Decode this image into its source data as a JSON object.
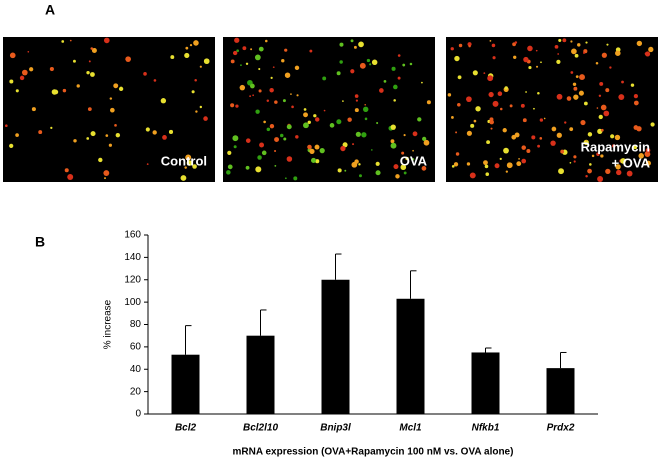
{
  "panels": {
    "a": "A",
    "b": "B"
  },
  "images": [
    [
      "Control"
    ],
    [
      "OVA"
    ],
    [
      "Rapamycin",
      "+ OVA"
    ]
  ],
  "chart_data": {
    "type": "bar",
    "categories": [
      "Bcl2",
      "Bcl2l10",
      "Bnip3l",
      "Mcl1",
      "Nfkb1",
      "Prdx2"
    ],
    "values": [
      53,
      70,
      120,
      103,
      55,
      41
    ],
    "errors": [
      26,
      23,
      23,
      25,
      4,
      14
    ],
    "color": "#000000",
    "ylabel": "% increase",
    "xlabel": "mRNA expression (OVA+Rapamycin 100 nM vs. OVA alone)",
    "ylim": [
      0,
      160
    ],
    "yticks": [
      0,
      20,
      40,
      60,
      80,
      100,
      120,
      140,
      160
    ]
  }
}
